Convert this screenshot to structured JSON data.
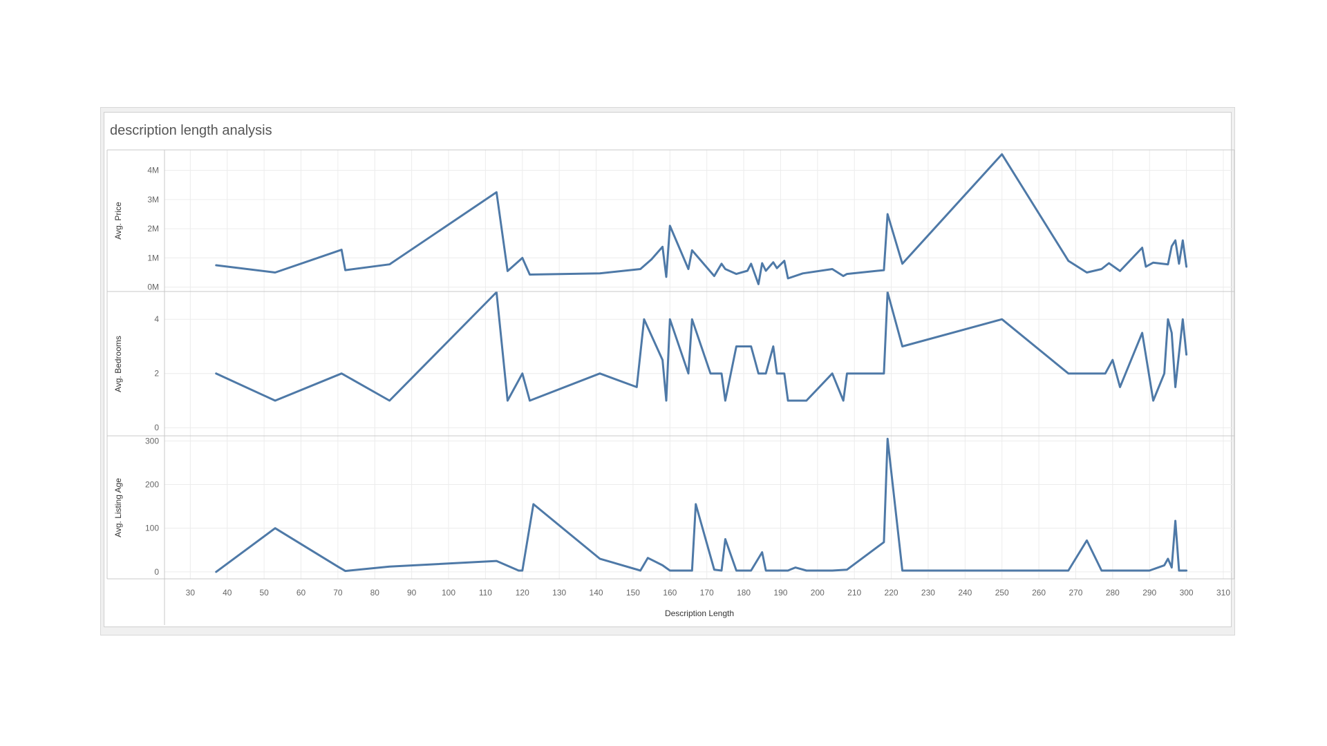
{
  "title": "description length analysis",
  "chart_data": {
    "type": "line",
    "title": "description length analysis",
    "xlabel": "Description Length",
    "xlim": [
      23,
      313
    ],
    "x_ticks": [
      30,
      40,
      50,
      60,
      70,
      80,
      90,
      100,
      110,
      120,
      130,
      140,
      150,
      160,
      170,
      180,
      190,
      200,
      210,
      220,
      230,
      240,
      250,
      260,
      270,
      280,
      290,
      300,
      310
    ],
    "color": "#4e79a7",
    "grid": true,
    "panels": [
      {
        "ylabel": "Avg. Price",
        "ylim": [
          -150000,
          4700000
        ],
        "y_ticks": [
          0,
          1000000,
          2000000,
          3000000,
          4000000
        ],
        "y_tick_labels": [
          "0M",
          "1M",
          "2M",
          "3M",
          "4M"
        ],
        "points": [
          [
            37,
            750000
          ],
          [
            53,
            500000
          ],
          [
            71,
            1280000
          ],
          [
            72,
            580000
          ],
          [
            84,
            780000
          ],
          [
            113,
            3250000
          ],
          [
            116,
            550000
          ],
          [
            120,
            1000000
          ],
          [
            122,
            430000
          ],
          [
            141,
            470000
          ],
          [
            152,
            620000
          ],
          [
            155,
            950000
          ],
          [
            158,
            1380000
          ],
          [
            159,
            350000
          ],
          [
            160,
            2100000
          ],
          [
            165,
            620000
          ],
          [
            166,
            1260000
          ],
          [
            172,
            380000
          ],
          [
            174,
            800000
          ],
          [
            175,
            620000
          ],
          [
            178,
            450000
          ],
          [
            181,
            560000
          ],
          [
            182,
            800000
          ],
          [
            184,
            100000
          ],
          [
            185,
            820000
          ],
          [
            186,
            560000
          ],
          [
            188,
            850000
          ],
          [
            189,
            650000
          ],
          [
            191,
            900000
          ],
          [
            192,
            300000
          ],
          [
            196,
            470000
          ],
          [
            204,
            620000
          ],
          [
            207,
            380000
          ],
          [
            208,
            450000
          ],
          [
            218,
            580000
          ],
          [
            219,
            2500000
          ],
          [
            223,
            800000
          ],
          [
            250,
            4550000
          ],
          [
            268,
            900000
          ],
          [
            273,
            500000
          ],
          [
            277,
            620000
          ],
          [
            279,
            820000
          ],
          [
            282,
            550000
          ],
          [
            288,
            1350000
          ],
          [
            289,
            700000
          ],
          [
            291,
            840000
          ],
          [
            295,
            780000
          ],
          [
            296,
            1400000
          ],
          [
            297,
            1600000
          ],
          [
            298,
            800000
          ],
          [
            299,
            1600000
          ],
          [
            300,
            700000
          ]
        ]
      },
      {
        "ylabel": "Avg. Bedrooms",
        "ylim": [
          -0.3,
          5
        ],
        "y_ticks": [
          0,
          2,
          4
        ],
        "y_tick_labels": [
          "0",
          "2",
          "4"
        ],
        "points": [
          [
            37,
            2
          ],
          [
            53,
            1
          ],
          [
            71,
            2
          ],
          [
            84,
            1
          ],
          [
            113,
            5
          ],
          [
            116,
            1
          ],
          [
            120,
            2
          ],
          [
            122,
            1
          ],
          [
            141,
            2
          ],
          [
            151,
            1.5
          ],
          [
            153,
            4
          ],
          [
            158,
            2.5
          ],
          [
            159,
            1
          ],
          [
            160,
            4
          ],
          [
            165,
            2
          ],
          [
            166,
            4
          ],
          [
            171,
            2
          ],
          [
            174,
            2
          ],
          [
            175,
            1
          ],
          [
            178,
            3
          ],
          [
            182,
            3
          ],
          [
            183,
            2.5
          ],
          [
            184,
            2
          ],
          [
            186,
            2
          ],
          [
            188,
            3
          ],
          [
            189,
            2
          ],
          [
            191,
            2
          ],
          [
            192,
            1
          ],
          [
            197,
            1
          ],
          [
            204,
            2
          ],
          [
            207,
            1
          ],
          [
            208,
            2
          ],
          [
            218,
            2
          ],
          [
            219,
            5
          ],
          [
            223,
            3
          ],
          [
            250,
            4
          ],
          [
            268,
            2
          ],
          [
            278,
            2
          ],
          [
            280,
            2.5
          ],
          [
            282,
            1.5
          ],
          [
            288,
            3.5
          ],
          [
            291,
            1
          ],
          [
            294,
            2
          ],
          [
            295,
            4
          ],
          [
            296,
            3.5
          ],
          [
            297,
            1.5
          ],
          [
            299,
            4
          ],
          [
            300,
            2.7
          ]
        ]
      },
      {
        "ylabel": "Avg. Listing Age",
        "ylim": [
          -16,
          310
        ],
        "y_ticks": [
          0,
          100,
          200,
          300
        ],
        "y_tick_labels": [
          "0",
          "100",
          "200",
          "300"
        ],
        "points": [
          [
            37,
            0
          ],
          [
            53,
            100
          ],
          [
            70,
            12
          ],
          [
            72,
            2
          ],
          [
            84,
            12
          ],
          [
            113,
            25
          ],
          [
            119,
            3
          ],
          [
            120,
            3
          ],
          [
            123,
            155
          ],
          [
            141,
            30
          ],
          [
            152,
            3
          ],
          [
            154,
            32
          ],
          [
            158,
            15
          ],
          [
            160,
            3
          ],
          [
            166,
            3
          ],
          [
            167,
            155
          ],
          [
            172,
            5
          ],
          [
            174,
            3
          ],
          [
            175,
            75
          ],
          [
            178,
            3
          ],
          [
            182,
            3
          ],
          [
            185,
            45
          ],
          [
            186,
            3
          ],
          [
            192,
            3
          ],
          [
            194,
            10
          ],
          [
            197,
            3
          ],
          [
            204,
            3
          ],
          [
            208,
            5
          ],
          [
            218,
            68
          ],
          [
            219,
            305
          ],
          [
            223,
            3
          ],
          [
            268,
            3
          ],
          [
            273,
            72
          ],
          [
            277,
            3
          ],
          [
            290,
            3
          ],
          [
            294,
            15
          ],
          [
            295,
            30
          ],
          [
            296,
            10
          ],
          [
            297,
            117
          ],
          [
            298,
            3
          ],
          [
            300,
            3
          ]
        ]
      }
    ]
  }
}
